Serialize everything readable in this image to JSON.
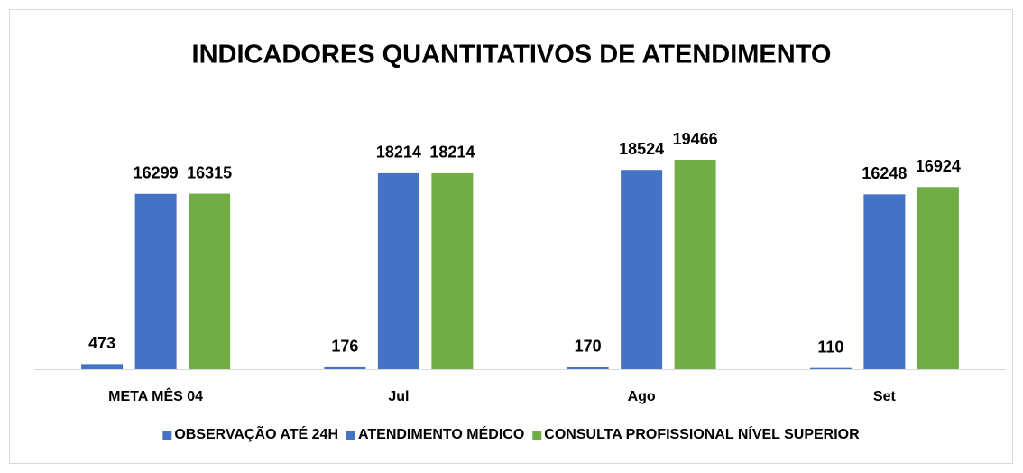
{
  "chart_data": {
    "type": "bar",
    "title": "INDICADORES QUANTITATIVOS DE ATENDIMENTO",
    "categories": [
      "META MÊS 04",
      "Jul",
      "Ago",
      "Set"
    ],
    "series": [
      {
        "name": "OBSERVAÇÃO ATÉ 24H",
        "color": "#4472c4",
        "values": [
          473,
          176,
          170,
          110
        ]
      },
      {
        "name": "ATENDIMENTO MÉDICO",
        "color": "#4472c4",
        "values": [
          16299,
          18214,
          18524,
          16248
        ]
      },
      {
        "name": "CONSULTA PROFISSIONAL NÍVEL SUPERIOR",
        "color": "#70ad47",
        "values": [
          16315,
          18214,
          19466,
          16924
        ]
      }
    ],
    "legend": "bottom"
  }
}
